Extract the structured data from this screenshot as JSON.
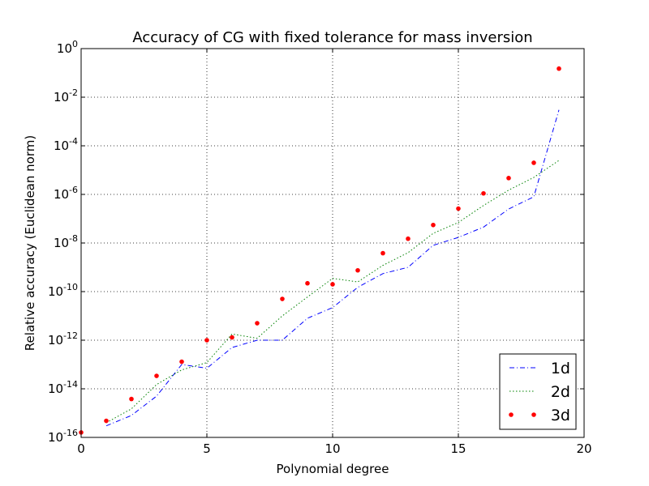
{
  "chart_data": {
    "type": "line",
    "title": "Accuracy of CG with fixed tolerance for mass inversion",
    "xlabel": "Polynomial degree",
    "ylabel": "Relative accuracy (Euclidean norm)",
    "xlim": [
      0,
      20
    ],
    "ylim": [
      1e-16,
      1
    ],
    "yscale": "log",
    "grid": true,
    "legend_position": "bottom-right",
    "x_ticks": [
      "0",
      "5",
      "10",
      "15",
      "20"
    ],
    "y_ticks": [
      {
        "base": "10",
        "exp": "0"
      },
      {
        "base": "10",
        "exp": "-2"
      },
      {
        "base": "10",
        "exp": "-4"
      },
      {
        "base": "10",
        "exp": "-6"
      },
      {
        "base": "10",
        "exp": "-8"
      },
      {
        "base": "10",
        "exp": "-10"
      },
      {
        "base": "10",
        "exp": "-12"
      },
      {
        "base": "10",
        "exp": "-14"
      },
      {
        "base": "10",
        "exp": "-16"
      }
    ],
    "series": [
      {
        "name": "1d",
        "style": "dashdot",
        "color": "#0000ff",
        "x": [
          1,
          2,
          3,
          4,
          5,
          6,
          7,
          8,
          9,
          10,
          11,
          12,
          13,
          14,
          15,
          16,
          17,
          18,
          19
        ],
        "y": [
          3e-16,
          8e-16,
          5e-15,
          1e-13,
          7e-14,
          5e-13,
          1e-12,
          1e-12,
          8e-12,
          2.2e-11,
          1.5e-10,
          5.5e-10,
          1e-09,
          8e-09,
          1.7e-08,
          4.5e-08,
          2.5e-07,
          8e-07,
          0.003
        ]
      },
      {
        "name": "2d",
        "style": "dotted",
        "color": "#008000",
        "x": [
          1,
          2,
          3,
          4,
          5,
          6,
          7,
          8,
          9,
          10,
          11,
          12,
          13,
          14,
          15,
          16,
          17,
          18,
          19
        ],
        "y": [
          4e-16,
          1.5e-15,
          1.5e-14,
          6e-14,
          1.2e-13,
          1.8e-12,
          1.2e-12,
          1e-11,
          6e-11,
          3.5e-10,
          2.5e-10,
          1.2e-09,
          4e-09,
          2.5e-08,
          7e-08,
          3.5e-07,
          1.5e-06,
          5e-06,
          2.5e-05
        ]
      },
      {
        "name": "3d",
        "style": "markers",
        "color": "#ff0000",
        "x": [
          0,
          1,
          2,
          3,
          4,
          5,
          6,
          7,
          8,
          9,
          10,
          11,
          12,
          13,
          14,
          15,
          16,
          17,
          18,
          19
        ],
        "y": [
          1.6e-16,
          4.8e-16,
          3.8e-15,
          3.4e-14,
          1.3e-13,
          1e-12,
          1.3e-12,
          5e-12,
          5e-11,
          2.2e-10,
          2e-10,
          7.5e-10,
          3.8e-09,
          1.5e-08,
          5.5e-08,
          2.6e-07,
          1.1e-06,
          4.7e-06,
          2e-05,
          0.15
        ]
      }
    ]
  }
}
